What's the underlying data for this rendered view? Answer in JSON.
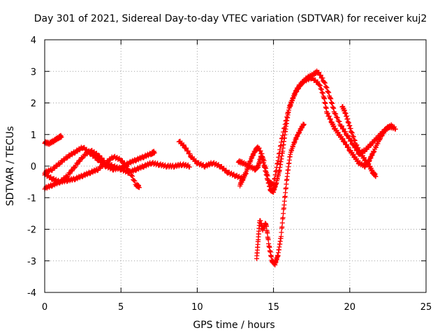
{
  "chart_data": {
    "type": "scatter",
    "title": "Day 301 of 2021, Sidereal Day-to-day VTEC variation (SDTVAR) for receiver kuj2",
    "xlabel": "GPS time / hours",
    "ylabel": "SDTVAR / TECUs",
    "xlim": [
      0,
      25
    ],
    "ylim": [
      -4,
      4
    ],
    "xticks": [
      "0",
      "5",
      "10",
      "15",
      "20",
      "25"
    ],
    "yticks": [
      "-4",
      "-3",
      "-2",
      "-1",
      "0",
      "1",
      "2",
      "3",
      "4"
    ],
    "grid": true,
    "marker": "+",
    "color": "#ff0000",
    "series": [
      {
        "name": "trace-1",
        "points": [
          [
            0.0,
            -0.7
          ],
          [
            0.5,
            -0.6
          ],
          [
            1.0,
            -0.5
          ],
          [
            1.5,
            -0.3
          ],
          [
            2.0,
            0.0
          ],
          [
            2.5,
            0.3
          ],
          [
            3.0,
            0.5
          ],
          [
            3.5,
            0.35
          ],
          [
            4.0,
            0.1
          ],
          [
            4.5,
            0.0
          ],
          [
            5.0,
            -0.1
          ],
          [
            5.5,
            -0.2
          ],
          [
            6.0,
            -0.1
          ],
          [
            6.5,
            0.0
          ],
          [
            7.0,
            0.1
          ],
          [
            7.5,
            0.05
          ],
          [
            8.0,
            0.0
          ],
          [
            8.5,
            0.0
          ],
          [
            9.0,
            0.05
          ],
          [
            9.5,
            0.0
          ]
        ]
      },
      {
        "name": "trace-2",
        "points": [
          [
            0.0,
            0.75
          ],
          [
            0.3,
            0.72
          ],
          [
            0.6,
            0.8
          ],
          [
            0.9,
            0.9
          ],
          [
            1.1,
            0.95
          ]
        ]
      },
      {
        "name": "trace-3",
        "points": [
          [
            0.0,
            -0.2
          ],
          [
            0.5,
            -0.1
          ],
          [
            1.0,
            0.1
          ],
          [
            1.5,
            0.3
          ],
          [
            2.0,
            0.45
          ],
          [
            2.5,
            0.6
          ],
          [
            3.0,
            0.4
          ],
          [
            3.5,
            0.2
          ],
          [
            4.0,
            0.0
          ],
          [
            4.5,
            -0.1
          ],
          [
            5.0,
            -0.05
          ],
          [
            5.5,
            0.1
          ],
          [
            6.0,
            0.2
          ],
          [
            6.5,
            0.3
          ],
          [
            7.0,
            0.4
          ],
          [
            7.2,
            0.45
          ]
        ]
      },
      {
        "name": "trace-4",
        "points": [
          [
            0.0,
            -0.25
          ],
          [
            0.5,
            -0.4
          ],
          [
            1.0,
            -0.5
          ],
          [
            1.5,
            -0.45
          ],
          [
            2.0,
            -0.4
          ],
          [
            2.5,
            -0.3
          ],
          [
            3.0,
            -0.2
          ],
          [
            3.5,
            -0.1
          ],
          [
            4.0,
            0.1
          ],
          [
            4.5,
            0.3
          ],
          [
            5.0,
            0.2
          ],
          [
            5.5,
            -0.1
          ],
          [
            6.0,
            -0.6
          ],
          [
            6.2,
            -0.65
          ]
        ]
      },
      {
        "name": "trace-5",
        "points": [
          [
            8.8,
            0.8
          ],
          [
            9.2,
            0.6
          ],
          [
            9.6,
            0.3
          ],
          [
            10.0,
            0.1
          ],
          [
            10.5,
            0.0
          ],
          [
            11.0,
            0.1
          ],
          [
            11.5,
            0.0
          ],
          [
            12.0,
            -0.2
          ],
          [
            12.5,
            -0.3
          ],
          [
            13.0,
            -0.4
          ]
        ]
      },
      {
        "name": "trace-6",
        "points": [
          [
            12.7,
            0.15
          ],
          [
            13.0,
            0.1
          ],
          [
            13.4,
            0.0
          ],
          [
            13.8,
            -0.1
          ],
          [
            14.0,
            0.0
          ],
          [
            14.2,
            0.35
          ],
          [
            14.4,
            0.0
          ],
          [
            14.6,
            -0.4
          ],
          [
            14.8,
            -0.75
          ],
          [
            15.0,
            -0.8
          ],
          [
            15.2,
            -0.5
          ],
          [
            15.4,
            -0.1
          ],
          [
            15.6,
            0.5
          ],
          [
            15.8,
            1.2
          ],
          [
            16.0,
            1.8
          ],
          [
            16.3,
            2.2
          ],
          [
            16.6,
            2.5
          ],
          [
            17.0,
            2.7
          ],
          [
            17.5,
            2.8
          ],
          [
            18.0,
            2.6
          ],
          [
            18.3,
            2.2
          ],
          [
            18.5,
            1.7
          ],
          [
            18.8,
            1.4
          ],
          [
            19.0,
            1.2
          ],
          [
            19.3,
            1.0
          ],
          [
            19.6,
            0.8
          ],
          [
            20.0,
            0.5
          ],
          [
            20.3,
            0.3
          ],
          [
            20.6,
            0.1
          ],
          [
            21.0,
            0.0
          ],
          [
            21.3,
            0.2
          ],
          [
            21.6,
            0.5
          ],
          [
            22.0,
            0.9
          ],
          [
            22.4,
            1.2
          ],
          [
            22.8,
            1.3
          ]
        ]
      },
      {
        "name": "trace-7",
        "points": [
          [
            13.9,
            -2.9
          ],
          [
            14.0,
            -2.3
          ],
          [
            14.1,
            -1.7
          ],
          [
            14.3,
            -2.0
          ],
          [
            14.5,
            -1.8
          ],
          [
            14.7,
            -2.5
          ],
          [
            14.9,
            -3.0
          ],
          [
            15.1,
            -3.1
          ],
          [
            15.3,
            -2.8
          ],
          [
            15.5,
            -2.2
          ],
          [
            15.7,
            -1.2
          ],
          [
            15.9,
            -0.3
          ],
          [
            16.1,
            0.4
          ],
          [
            16.4,
            0.8
          ],
          [
            16.7,
            1.1
          ],
          [
            17.0,
            1.35
          ]
        ]
      },
      {
        "name": "trace-8",
        "points": [
          [
            12.8,
            -0.6
          ],
          [
            13.0,
            -0.4
          ],
          [
            13.2,
            -0.2
          ],
          [
            13.5,
            0.2
          ],
          [
            13.8,
            0.5
          ],
          [
            14.0,
            0.6
          ],
          [
            14.3,
            0.3
          ],
          [
            14.7,
            -0.5
          ],
          [
            15.0,
            -0.6
          ],
          [
            15.3,
            0.2
          ],
          [
            15.6,
            1.0
          ],
          [
            16.0,
            1.8
          ],
          [
            16.4,
            2.3
          ],
          [
            16.8,
            2.6
          ],
          [
            17.2,
            2.8
          ],
          [
            17.6,
            2.9
          ],
          [
            17.9,
            3.0
          ],
          [
            18.3,
            2.7
          ],
          [
            18.7,
            2.2
          ],
          [
            19.0,
            1.7
          ],
          [
            19.4,
            1.3
          ],
          [
            19.8,
            1.0
          ],
          [
            20.2,
            0.7
          ],
          [
            20.6,
            0.4
          ],
          [
            21.0,
            0.5
          ],
          [
            21.4,
            0.7
          ],
          [
            21.8,
            0.9
          ],
          [
            22.2,
            1.1
          ],
          [
            22.6,
            1.25
          ],
          [
            23.0,
            1.2
          ]
        ]
      },
      {
        "name": "trace-9",
        "points": [
          [
            19.5,
            1.9
          ],
          [
            19.7,
            1.7
          ],
          [
            19.9,
            1.4
          ],
          [
            20.1,
            1.1
          ],
          [
            20.4,
            0.7
          ],
          [
            20.7,
            0.4
          ],
          [
            21.0,
            0.2
          ],
          [
            21.3,
            0.0
          ],
          [
            21.5,
            -0.2
          ],
          [
            21.7,
            -0.3
          ]
        ]
      }
    ]
  }
}
